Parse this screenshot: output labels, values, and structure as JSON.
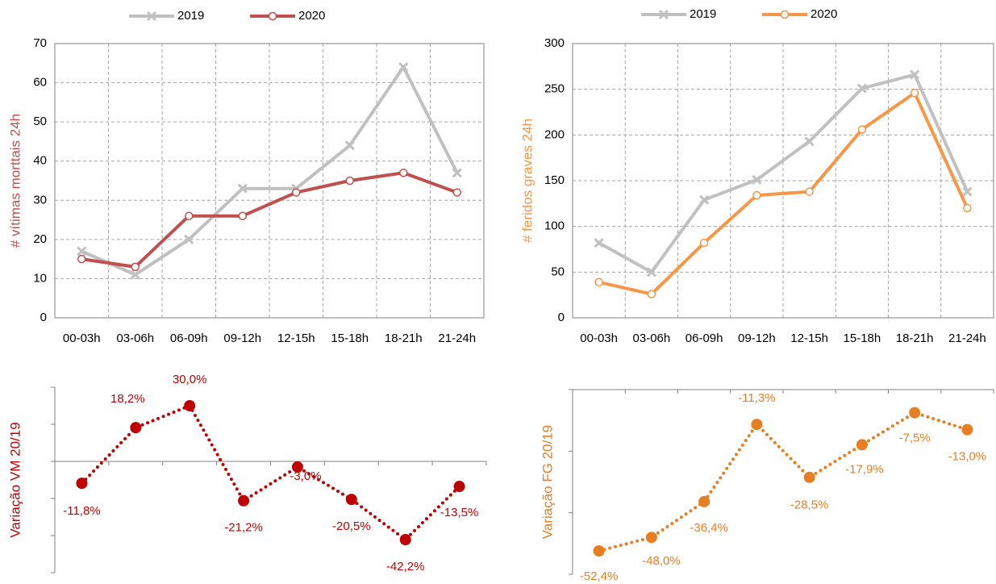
{
  "chart_data": [
    {
      "type": "line",
      "ylabel": "# vítimas morttais 24h",
      "categories": [
        "00-03h",
        "03-06h",
        "06-09h",
        "09-12h",
        "12-15h",
        "15-18h",
        "18-21h",
        "21-24h"
      ],
      "series": [
        {
          "name": "2019",
          "color": "#c0c0c0",
          "values": [
            17,
            11,
            20,
            33,
            33,
            44,
            64,
            37
          ]
        },
        {
          "name": "2020",
          "color": "#c0504d",
          "values": [
            15,
            13,
            26,
            26,
            32,
            35,
            37,
            32
          ]
        }
      ],
      "ylim": [
        0,
        70
      ],
      "yticks": [
        0,
        10,
        20,
        30,
        40,
        50,
        60,
        70
      ],
      "grid": true,
      "legend": "top"
    },
    {
      "type": "line",
      "ylabel": "# feridos graves 24h",
      "categories": [
        "00-03h",
        "03-06h",
        "06-09h",
        "09-12h",
        "12-15h",
        "15-18h",
        "18-21h",
        "21-24h"
      ],
      "series": [
        {
          "name": "2019",
          "color": "#c0c0c0",
          "values": [
            82,
            50,
            129,
            151,
            193,
            251,
            266,
            138
          ]
        },
        {
          "name": "2020",
          "color": "#f79646",
          "values": [
            39,
            26,
            82,
            134,
            138,
            206,
            246,
            120
          ]
        }
      ],
      "ylim": [
        0,
        300
      ],
      "yticks": [
        0,
        50,
        100,
        150,
        200,
        250,
        300
      ],
      "grid": true,
      "legend": "top"
    },
    {
      "type": "dotted",
      "ylabel": "Variação VM 20/19",
      "color": "#c00000",
      "values": [
        -11.8,
        18.2,
        30.0,
        -21.2,
        -3.0,
        -20.5,
        -42.2,
        -13.5
      ],
      "value_labels": [
        "-11,8%",
        "18,2%",
        "30,0%",
        "-21,2%",
        "-3,0%",
        "-20,5%",
        "-42,2%",
        "-13,5%"
      ],
      "ylim": [
        -60,
        40
      ],
      "yticks": [
        -60,
        -40,
        -20,
        0,
        20,
        40
      ]
    },
    {
      "type": "dotted",
      "ylabel": "Variação FG 20/19",
      "color": "#e87e22",
      "values": [
        -52.4,
        -48.0,
        -36.4,
        -11.3,
        -28.5,
        -17.9,
        -7.5,
        -13.0
      ],
      "value_labels": [
        "-52,4%",
        "-48,0%",
        "-36,4%",
        "-11,3%",
        "-28,5%",
        "-17,9%",
        "-7,5%",
        "-13,0%"
      ],
      "ylim": [
        -60,
        0
      ],
      "yticks": [
        -60,
        -40,
        -20,
        0
      ]
    }
  ]
}
